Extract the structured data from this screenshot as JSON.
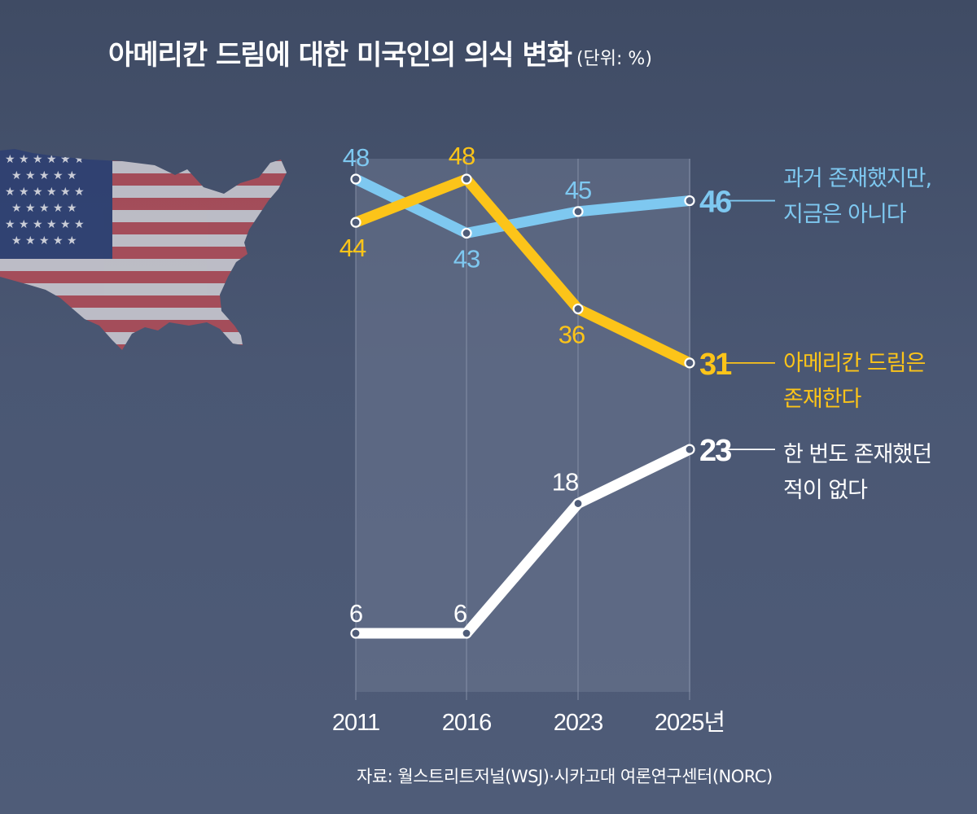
{
  "title": "아메리칸 드림에 대한 미국인의 의식 변화",
  "unit": "(단위: %)",
  "source": "자료: 월스트리트저널(WSJ)·시카고대 여론연구센터(NORC)",
  "colors": {
    "blue": "#7ec8f0",
    "yellow": "#fcc419",
    "white": "#ffffff"
  },
  "chart_data": {
    "type": "line",
    "title": "아메리칸 드림에 대한 미국인의 의식 변화",
    "ylabel": "%",
    "ylim": [
      0,
      50
    ],
    "categories": [
      "2011",
      "2016",
      "2023",
      "2025년"
    ],
    "series": [
      {
        "name": "과거 존재했지만, 지금은 아니다",
        "label_lines": [
          "과거 존재했지만,",
          "지금은 아니다"
        ],
        "color": "#7ec8f0",
        "values": [
          48,
          43,
          45,
          46
        ]
      },
      {
        "name": "아메리칸 드림은 존재한다",
        "label_lines": [
          "아메리칸 드림은",
          "존재한다"
        ],
        "color": "#fcc419",
        "values": [
          44,
          48,
          36,
          31
        ]
      },
      {
        "name": "한 번도 존재했던 적이 없다",
        "label_lines": [
          "한 번도 존재했던",
          "적이 없다"
        ],
        "color": "#ffffff",
        "values": [
          6,
          6,
          18,
          23
        ]
      }
    ]
  }
}
